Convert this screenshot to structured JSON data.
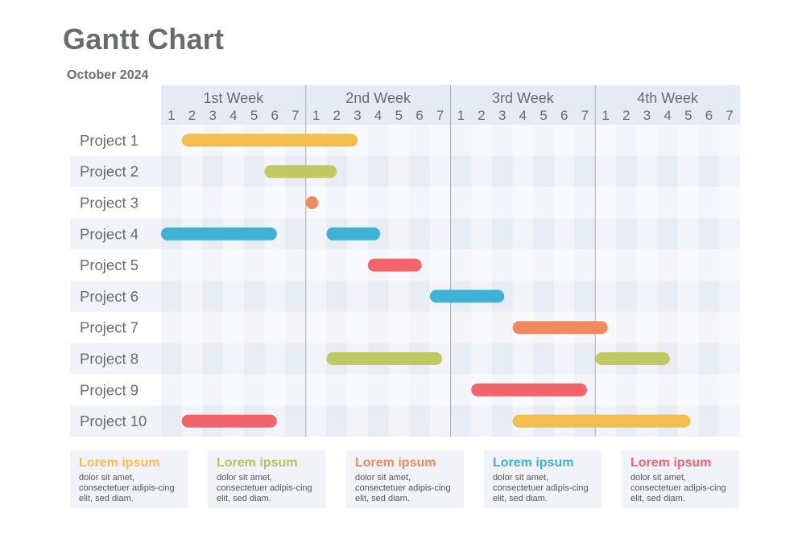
{
  "title": "Gantt Chart",
  "subtitle": "October 2024",
  "chart_data": {
    "type": "gantt",
    "title": "Gantt Chart",
    "subtitle": "October 2024",
    "weeks": [
      "1st Week",
      "2nd Week",
      "3rd Week",
      "4th Week"
    ],
    "days": [
      "1",
      "2",
      "3",
      "4",
      "5",
      "6",
      "7",
      "1",
      "2",
      "3",
      "4",
      "5",
      "6",
      "7",
      "1",
      "2",
      "3",
      "4",
      "5",
      "6",
      "7",
      "1",
      "2",
      "3",
      "4",
      "5",
      "6",
      "7"
    ],
    "projects": [
      {
        "name": "Project 1",
        "tasks": [
          {
            "start": 2,
            "end": 10.5,
            "color": "#f4bd4f"
          }
        ]
      },
      {
        "name": "Project 2",
        "tasks": [
          {
            "start": 6,
            "end": 9.5,
            "color": "#c0c963"
          }
        ]
      },
      {
        "name": "Project 3",
        "tasks": [
          {
            "start": 8,
            "end": 8.6,
            "color": "#f08a5d"
          }
        ]
      },
      {
        "name": "Project 4",
        "tasks": [
          {
            "start": 1,
            "end": 6.6,
            "color": "#3fb1d5"
          },
          {
            "start": 9,
            "end": 11.6,
            "color": "#3fb1d5"
          }
        ]
      },
      {
        "name": "Project 5",
        "tasks": [
          {
            "start": 11,
            "end": 13.6,
            "color": "#f2636c"
          }
        ]
      },
      {
        "name": "Project 6",
        "tasks": [
          {
            "start": 14,
            "end": 17.6,
            "color": "#3fb1d5"
          }
        ]
      },
      {
        "name": "Project 7",
        "tasks": [
          {
            "start": 18,
            "end": 22.6,
            "color": "#f08a5d"
          }
        ]
      },
      {
        "name": "Project 8",
        "tasks": [
          {
            "start": 9,
            "end": 14.6,
            "color": "#c0c963"
          },
          {
            "start": 22,
            "end": 25.6,
            "color": "#c0c963"
          }
        ]
      },
      {
        "name": "Project 9",
        "tasks": [
          {
            "start": 16,
            "end": 21.6,
            "color": "#f2636c"
          }
        ]
      },
      {
        "name": "Project 10",
        "tasks": [
          {
            "start": 2,
            "end": 6.6,
            "color": "#f2636c"
          },
          {
            "start": 18,
            "end": 26.6,
            "color": "#f4bd4f"
          }
        ]
      }
    ]
  },
  "legend": [
    {
      "title": "Lorem ipsum",
      "text": "dolor sit amet, consectetuer adipis-cing elit, sed diam.",
      "color": "#f4bd4f"
    },
    {
      "title": "Lorem ipsum",
      "text": "dolor sit amet, consectetuer adipis-cing elit, sed diam.",
      "color": "#b6c25a"
    },
    {
      "title": "Lorem ipsum",
      "text": "dolor sit amet, consectetuer adipis-cing elit, sed diam.",
      "color": "#f08a5d"
    },
    {
      "title": "Lorem ipsum",
      "text": "dolor sit amet, consectetuer adipis-cing elit, sed diam.",
      "color": "#3fb1d5"
    },
    {
      "title": "Lorem ipsum",
      "text": "dolor sit amet, consectetuer adipis-cing elit, sed diam.",
      "color": "#f2636c"
    }
  ]
}
